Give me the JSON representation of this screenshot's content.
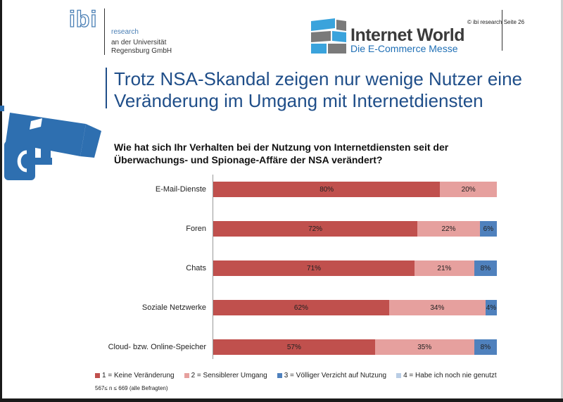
{
  "header": {
    "ibi_logo": "ibi",
    "research": "research",
    "institution": "an der Universität",
    "institution2": "Regensburg GmbH",
    "iw_title": "Internet World",
    "iw_subtitle": "Die E-Commerce Messe",
    "copyright": "© ibi research Seite 26"
  },
  "headline": {
    "line1": "Trotz NSA-Skandal zeigen nur wenige Nutzer eine",
    "line2": "Veränderung im Umgang mit Internetdiensten"
  },
  "icon": "surveillance-camera-icon",
  "chart_data": {
    "type": "bar",
    "orientation": "horizontal",
    "stacked": true,
    "title_line1": "Wie hat sich Ihr Verhalten bei der Nutzung von Internetdiensten seit der",
    "title_line2": "Überwachungs- und Spionage-Affäre der NSA verändert?",
    "categories": [
      "E-Mail-Dienste",
      "Foren",
      "Chats",
      "Soziale Netzwerke",
      "Cloud- bzw. Online-Speicher"
    ],
    "series": [
      {
        "name": "1 = Keine Veränderung",
        "color": "#c0504d",
        "values": [
          80,
          72,
          71,
          62,
          57
        ]
      },
      {
        "name": "2 = Sensiblerer Umgang",
        "color": "#e6a09e",
        "values": [
          20,
          22,
          21,
          34,
          35
        ]
      },
      {
        "name": "3 = Völliger Verzicht auf Nutzung",
        "color": "#4f81bd",
        "values": [
          0,
          6,
          8,
          4,
          8
        ]
      },
      {
        "name": "4 = Habe ich noch nie genutzt",
        "color": "#b9cde5",
        "values": [
          0,
          0,
          0,
          0,
          0
        ]
      }
    ],
    "labels": [
      [
        "80%",
        "20%",
        "",
        ""
      ],
      [
        "72%",
        "22%",
        "6%",
        ""
      ],
      [
        "71%",
        "21%",
        "8%",
        ""
      ],
      [
        "62%",
        "34%",
        "4%",
        ""
      ],
      [
        "57%",
        "35%",
        "8%",
        ""
      ]
    ],
    "xlim": [
      0,
      100
    ],
    "legend_position": "bottom",
    "note": "567≤ n ≤ 669 (alle Befragten)"
  }
}
